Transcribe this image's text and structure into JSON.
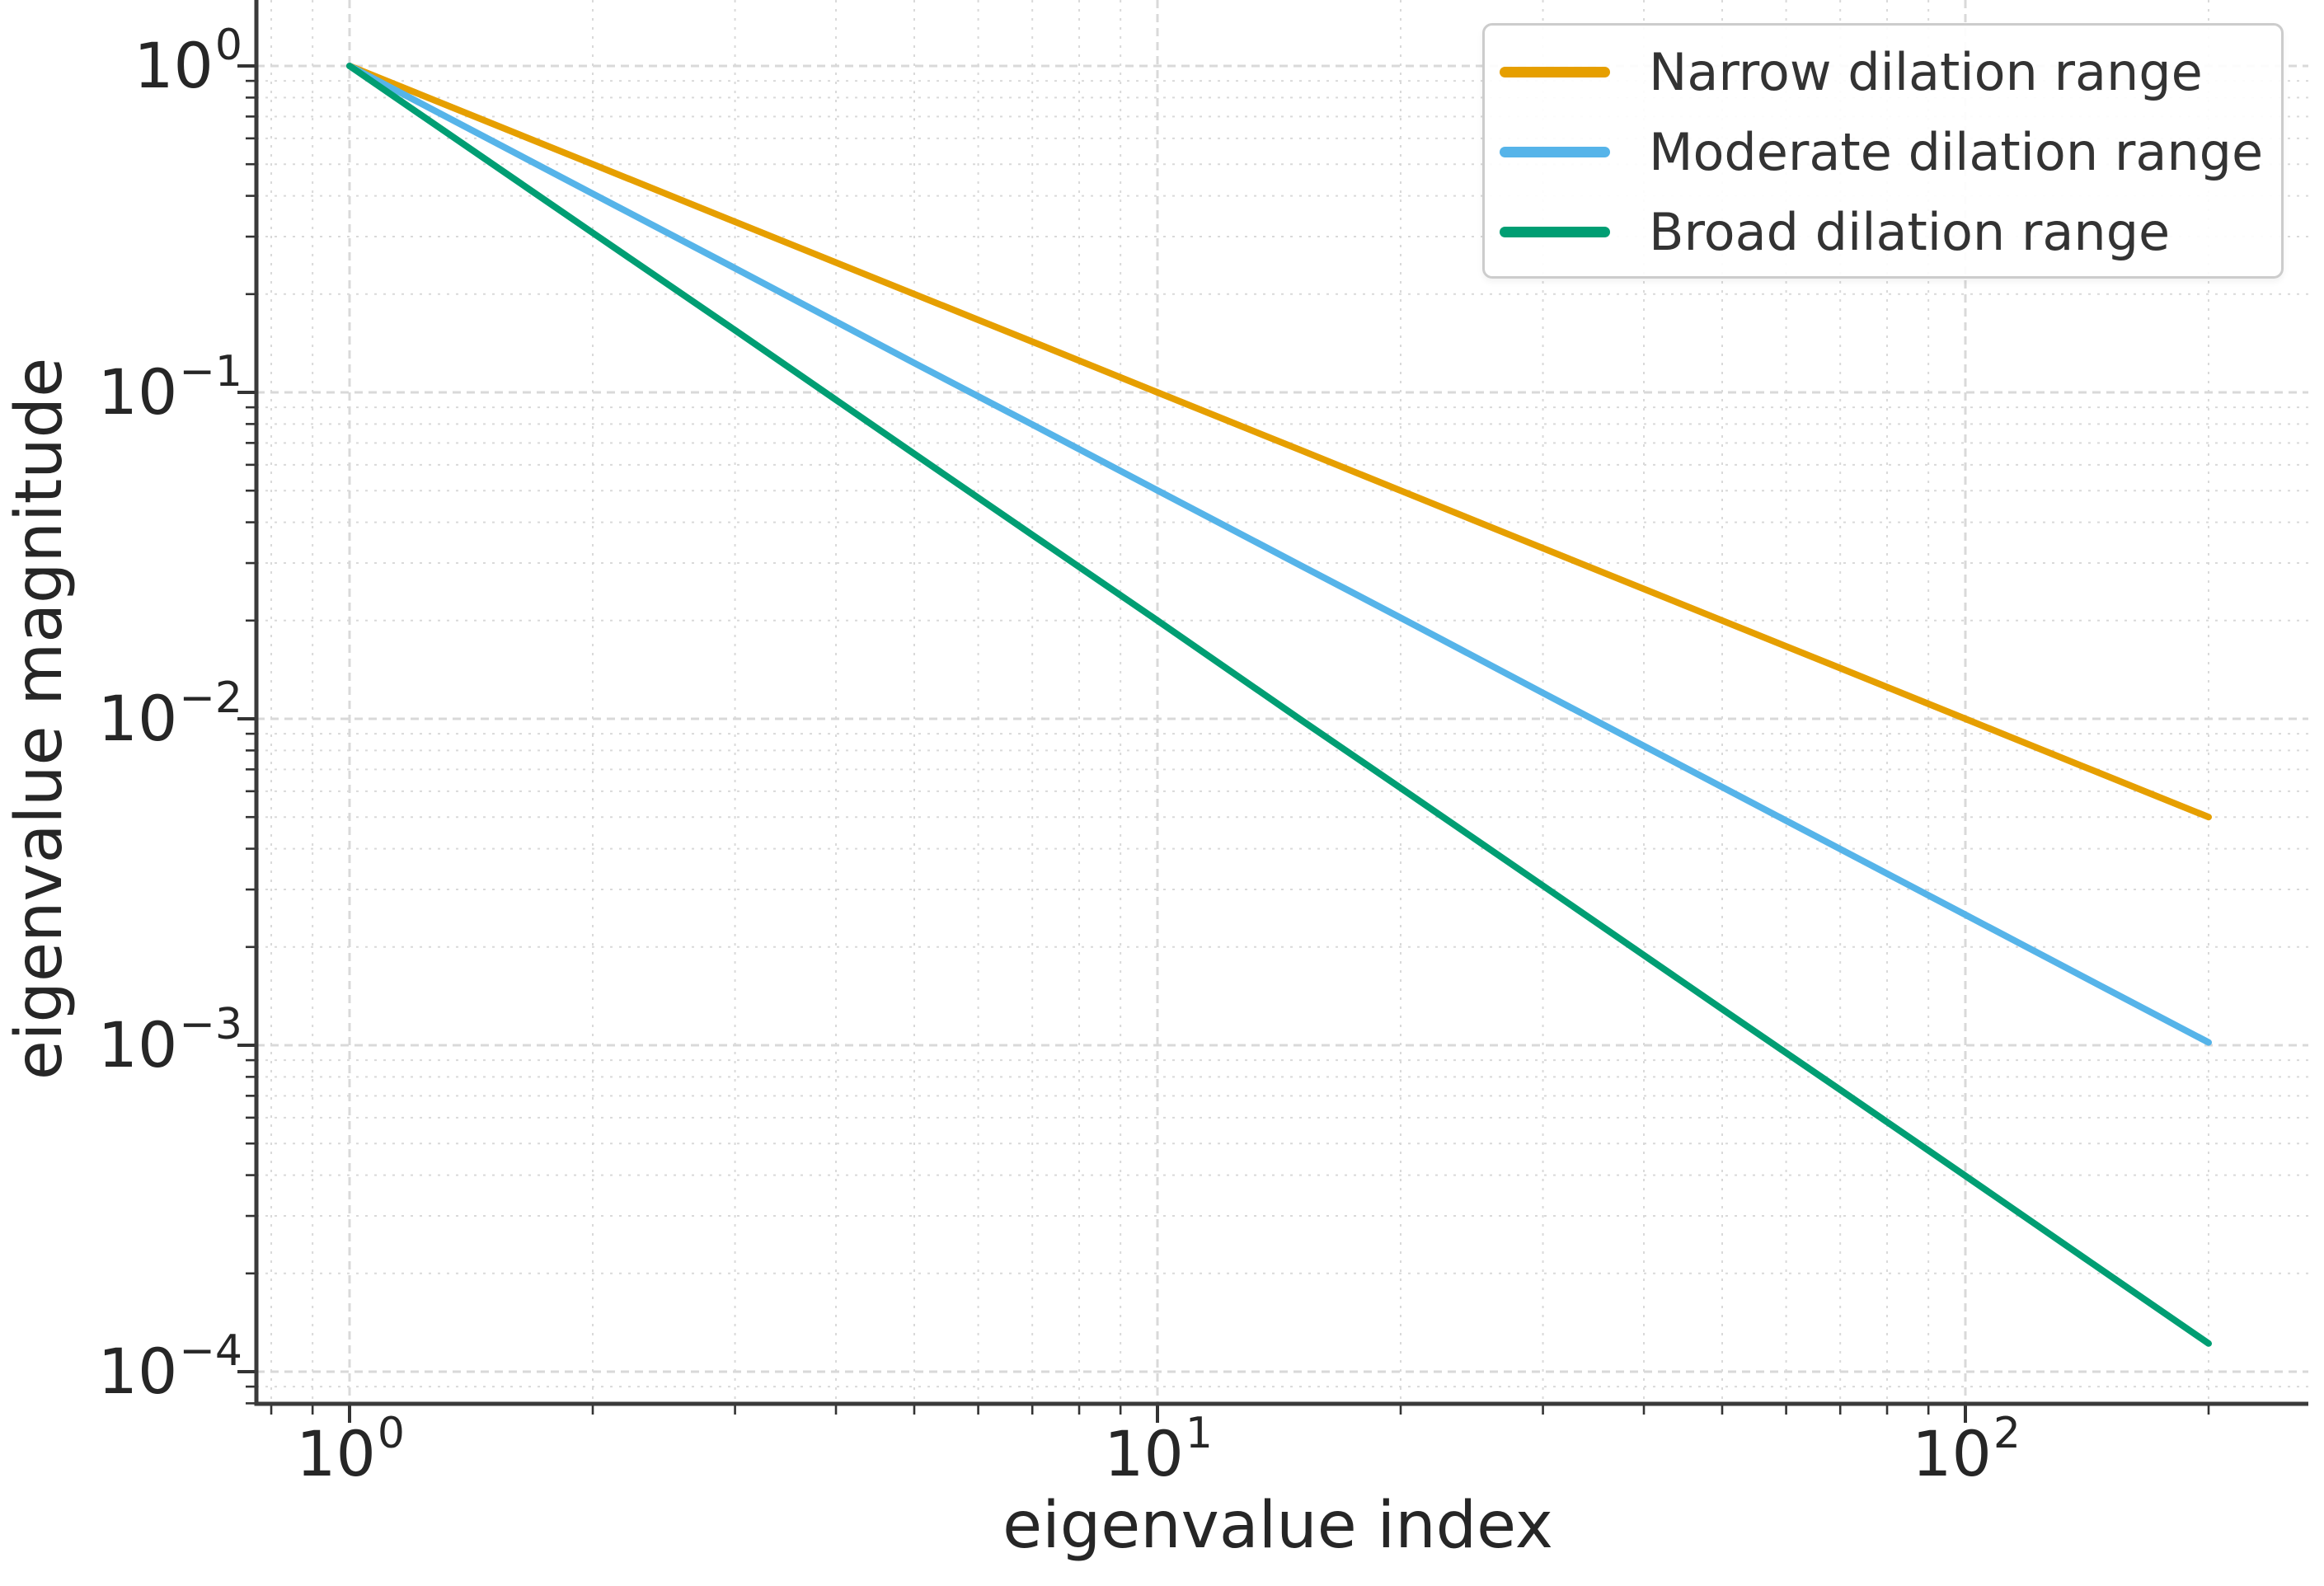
{
  "chart_data": {
    "type": "line",
    "title": "",
    "xlabel": "eigenvalue index",
    "ylabel": "eigenvalue magnitude",
    "xscale": "log",
    "yscale": "log",
    "xlim": [
      0.77,
      265
    ],
    "ylim": [
      8e-05,
      1.28
    ],
    "grid": "major and minor, light gray dashed, both axes",
    "legend_position": "upper right",
    "x_tick_values": [
      1,
      10,
      100
    ],
    "x_tick_labels": [
      {
        "base": "10",
        "exp": "0"
      },
      {
        "base": "10",
        "exp": "1"
      },
      {
        "base": "10",
        "exp": "2"
      }
    ],
    "y_tick_values": [
      1,
      0.1,
      0.01,
      0.001,
      0.0001
    ],
    "y_tick_labels": [
      {
        "base": "10",
        "exp": "0"
      },
      {
        "base": "10",
        "exp": "−1"
      },
      {
        "base": "10",
        "exp": "−2"
      },
      {
        "base": "10",
        "exp": "−3"
      },
      {
        "base": "10",
        "exp": "−4"
      }
    ],
    "x": [
      1,
      2,
      3,
      5,
      7,
      10,
      15,
      20,
      30,
      50,
      70,
      100,
      140,
      200
    ],
    "series": [
      {
        "name": "Narrow dilation range",
        "color": "#E69F00",
        "power_law_exponent": 1.0,
        "values": [
          1.0,
          0.5,
          0.333,
          0.2,
          0.143,
          0.1,
          0.0667,
          0.05,
          0.0333,
          0.02,
          0.0143,
          0.01,
          0.00714,
          0.005
        ]
      },
      {
        "name": "Moderate dilation range",
        "color": "#56B4E9",
        "power_law_exponent": 1.3,
        "values": [
          1.0,
          0.406,
          0.24,
          0.123,
          0.0797,
          0.0501,
          0.0296,
          0.0204,
          0.012,
          0.00618,
          0.00399,
          0.00251,
          0.00162,
          0.00102
        ]
      },
      {
        "name": "Broad dilation range",
        "color": "#009E73",
        "power_law_exponent": 1.7,
        "values": [
          1.0,
          0.308,
          0.155,
          0.0648,
          0.0366,
          0.02,
          0.00998,
          0.00614,
          0.00308,
          0.00129,
          0.00073,
          0.000398,
          0.000224,
          0.000122
        ]
      }
    ]
  },
  "legend": {
    "items": [
      {
        "label": "Narrow dilation range",
        "color": "#E69F00"
      },
      {
        "label": "Moderate dilation range",
        "color": "#56B4E9"
      },
      {
        "label": "Broad dilation range",
        "color": "#009E73"
      }
    ]
  },
  "style": {
    "spine_color": "#3a3a3a",
    "tick_color": "#333333",
    "grid_color": "#d9d9d9",
    "background": "#ffffff"
  }
}
